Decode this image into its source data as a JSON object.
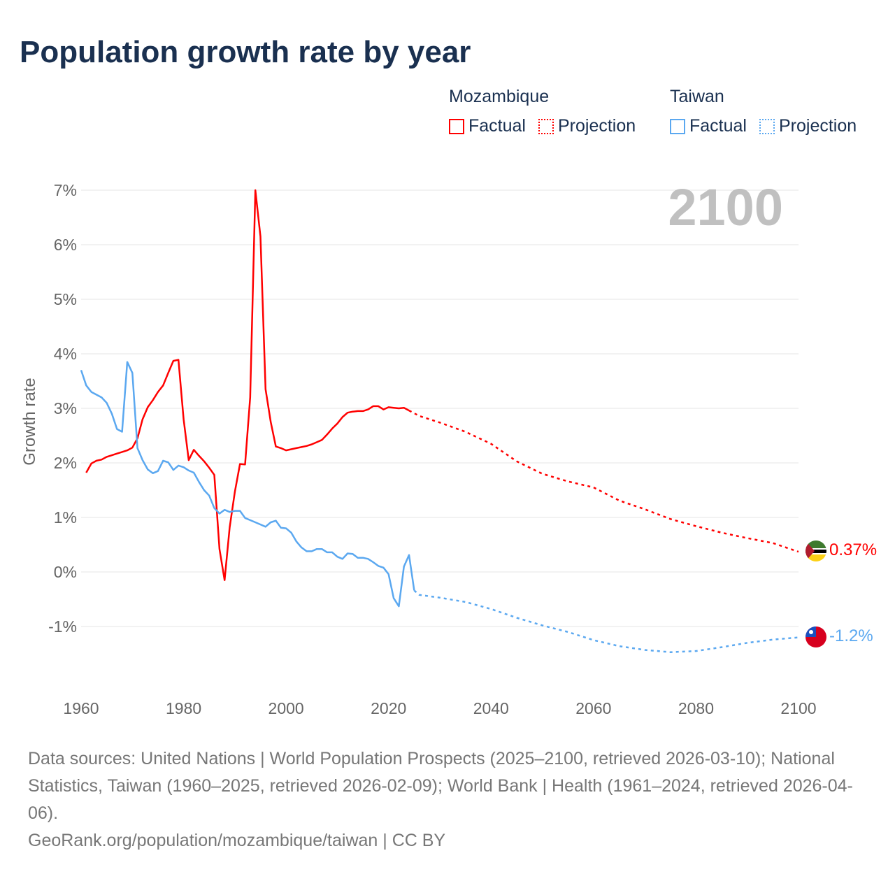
{
  "title": "Population growth rate by year",
  "legend": {
    "groups": [
      {
        "country": "Mozambique",
        "factual": "Factual",
        "projection": "Projection",
        "color": "#ff0000"
      },
      {
        "country": "Taiwan",
        "factual": "Factual",
        "projection": "Projection",
        "color": "#5ba8f0"
      }
    ]
  },
  "year_label": "2100",
  "end_labels": {
    "mozambique": {
      "text": "0.37%",
      "flag": "mozambique-flag-icon"
    },
    "taiwan": {
      "text": "-1.2%",
      "flag": "taiwan-flag-icon"
    }
  },
  "footer": {
    "sources": "Data sources: United Nations | World Population Prospects (2025–2100, retrieved 2026-03-10); National Statistics, Taiwan (1960–2025, retrieved 2026-02-09); World Bank | Health (1961–2024, retrieved 2026-04-06).",
    "credit": "GeoRank.org/population/mozambique/taiwan | CC BY"
  },
  "chart_data": {
    "type": "line",
    "title": "Population growth rate by year",
    "xlabel": "",
    "ylabel": "Growth rate",
    "xlim": [
      1960,
      2100
    ],
    "ylim": [
      -2,
      7
    ],
    "xticks": [
      "1960",
      "1980",
      "2000",
      "2020",
      "2040",
      "2060",
      "2080",
      "2100"
    ],
    "yticks": [
      {
        "v": -1,
        "label": "-1%"
      },
      {
        "v": 0,
        "label": "0%"
      },
      {
        "v": 1,
        "label": "1%"
      },
      {
        "v": 2,
        "label": "2%"
      },
      {
        "v": 3,
        "label": "3%"
      },
      {
        "v": 4,
        "label": "4%"
      },
      {
        "v": 5,
        "label": "5%"
      },
      {
        "v": 6,
        "label": "6%"
      },
      {
        "v": 7,
        "label": "7%"
      }
    ],
    "grid": true,
    "series": [
      {
        "name": "Mozambique Factual",
        "color": "#ff0000",
        "dashed": false,
        "start": 1961,
        "values": [
          1.82,
          1.99,
          2.04,
          2.06,
          2.11,
          2.14,
          2.17,
          2.2,
          2.23,
          2.28,
          2.45,
          2.8,
          3.02,
          3.15,
          3.3,
          3.42,
          3.65,
          3.87,
          3.89,
          2.8,
          2.05,
          2.24,
          2.13,
          2.03,
          1.91,
          1.78,
          0.42,
          -0.15,
          0.82,
          1.47,
          1.98,
          1.97,
          3.2,
          7.0,
          6.15,
          3.35,
          2.75,
          2.3,
          2.27,
          2.23,
          2.25,
          2.27,
          2.29,
          2.31,
          2.34,
          2.38,
          2.42,
          2.52,
          2.63,
          2.72,
          2.84,
          2.92,
          2.94,
          2.95,
          2.95,
          2.98,
          3.04,
          3.04,
          2.98,
          3.02,
          3.01,
          3.0,
          3.01,
          2.96
        ]
      },
      {
        "name": "Mozambique Projection",
        "color": "#ff0000",
        "dashed": true,
        "x": [
          2024,
          2026,
          2030,
          2035,
          2040,
          2045,
          2050,
          2055,
          2060,
          2065,
          2070,
          2075,
          2080,
          2085,
          2090,
          2095,
          2100
        ],
        "values": [
          2.96,
          2.86,
          2.74,
          2.57,
          2.35,
          2.03,
          1.8,
          1.66,
          1.55,
          1.31,
          1.15,
          0.97,
          0.84,
          0.72,
          0.62,
          0.53,
          0.37
        ]
      },
      {
        "name": "Taiwan Factual",
        "color": "#5ba8f0",
        "dashed": false,
        "start": 1960,
        "values": [
          3.7,
          3.42,
          3.3,
          3.25,
          3.2,
          3.1,
          2.9,
          2.62,
          2.57,
          3.85,
          3.65,
          2.27,
          2.05,
          1.88,
          1.81,
          1.85,
          2.04,
          2.01,
          1.87,
          1.95,
          1.92,
          1.86,
          1.82,
          1.65,
          1.5,
          1.4,
          1.17,
          1.07,
          1.14,
          1.1,
          1.12,
          1.12,
          0.99,
          0.95,
          0.91,
          0.87,
          0.83,
          0.91,
          0.94,
          0.81,
          0.8,
          0.72,
          0.56,
          0.45,
          0.38,
          0.38,
          0.42,
          0.42,
          0.36,
          0.36,
          0.28,
          0.24,
          0.34,
          0.33,
          0.26,
          0.26,
          0.24,
          0.18,
          0.11,
          0.08,
          -0.04,
          -0.48,
          -0.63,
          0.1,
          0.31,
          -0.34
        ]
      },
      {
        "name": "Taiwan Projection",
        "color": "#5ba8f0",
        "dashed": true,
        "x": [
          2025,
          2026,
          2030,
          2035,
          2040,
          2045,
          2050,
          2055,
          2060,
          2065,
          2070,
          2075,
          2080,
          2085,
          2090,
          2095,
          2100
        ],
        "values": [
          -0.34,
          -0.42,
          -0.47,
          -0.55,
          -0.68,
          -0.84,
          -0.98,
          -1.1,
          -1.25,
          -1.36,
          -1.43,
          -1.47,
          -1.45,
          -1.38,
          -1.3,
          -1.24,
          -1.2
        ]
      }
    ]
  }
}
